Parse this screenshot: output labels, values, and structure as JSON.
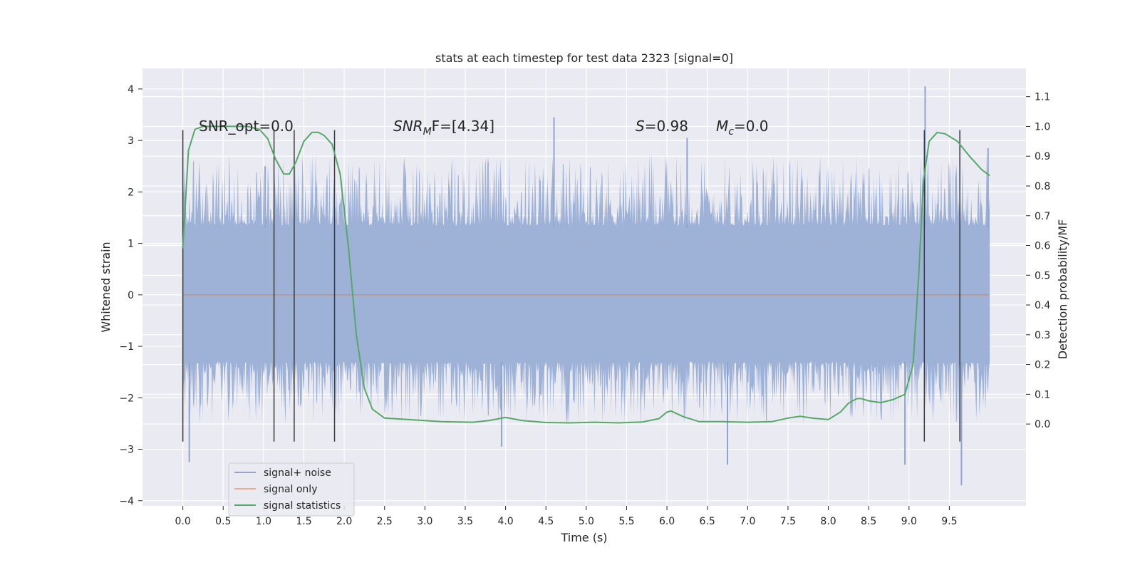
{
  "chart_data": {
    "type": "line",
    "title": "stats at each timestep for test data 2323 [signal=0]",
    "xlabel": "Time (s)",
    "ylabel": "Whitened strain",
    "y2label": "Detection probability/MF",
    "xlim": [
      -0.5,
      10.45
    ],
    "ylim": [
      -4.1,
      4.4
    ],
    "y2lim": [
      -0.275,
      1.195
    ],
    "x_ticks": [
      "0.0",
      "0.5",
      "1.0",
      "1.5",
      "2.0",
      "2.5",
      "3.0",
      "3.5",
      "4.0",
      "4.5",
      "5.0",
      "5.5",
      "6.0",
      "6.5",
      "7.0",
      "7.5",
      "8.0",
      "8.5",
      "9.0",
      "9.5"
    ],
    "y_ticks": [
      "4",
      "3",
      "2",
      "1",
      "0",
      "−1",
      "−2",
      "−3",
      "−4"
    ],
    "y2_ticks": [
      "1.1",
      "1.0",
      "0.9",
      "0.8",
      "0.7",
      "0.6",
      "0.5",
      "0.4",
      "0.3",
      "0.2",
      "0.1",
      "0.0"
    ],
    "grid": true,
    "background": "#eaeaf2",
    "legend_position": "lower-left",
    "colors": {
      "noise": "#8fa5cf",
      "signal": "#dd8452",
      "statistics": "#55a868",
      "markers": "#3a3a3a"
    },
    "annotations": {
      "snr_opt": "SNR_opt=0.0",
      "snr_mf_prefix": "SNR",
      "snr_mf_sub": "M",
      "snr_mf_suffix": "F=[4.34]",
      "s_var": "S",
      "s_val": "=0.98",
      "mc_var": "M",
      "mc_sub": "c",
      "mc_val": "=0.0"
    },
    "series": [
      {
        "name": "signal+ noise",
        "x_range": [
          0.0,
          10.0
        ],
        "envelope_typical": [
          -1.9,
          2.4
        ],
        "notable_peaks": [
          {
            "x": 1.02,
            "y": 2.5
          },
          {
            "x": 4.6,
            "y": 3.45
          },
          {
            "x": 6.25,
            "y": 3.05
          },
          {
            "x": 9.2,
            "y": 4.05
          },
          {
            "x": 9.98,
            "y": 2.85
          },
          {
            "x": 0.08,
            "y": -3.25
          },
          {
            "x": 9.65,
            "y": -3.7
          },
          {
            "x": 6.75,
            "y": -3.3
          },
          {
            "x": 8.95,
            "y": -3.3
          },
          {
            "x": 3.95,
            "y": -2.95
          }
        ]
      },
      {
        "name": "signal only",
        "x": [
          0.0,
          10.0
        ],
        "y": [
          0.0,
          0.0
        ]
      },
      {
        "name": "signal statistics",
        "x": [
          0.0,
          0.07,
          0.15,
          0.25,
          0.4,
          0.6,
          0.8,
          0.95,
          1.05,
          1.15,
          1.25,
          1.32,
          1.4,
          1.5,
          1.6,
          1.68,
          1.75,
          1.85,
          1.95,
          2.05,
          2.15,
          2.25,
          2.35,
          2.5,
          2.8,
          3.2,
          3.6,
          3.8,
          4.0,
          4.2,
          4.5,
          4.8,
          5.1,
          5.4,
          5.7,
          5.9,
          6.0,
          6.05,
          6.2,
          6.4,
          6.7,
          7.0,
          7.3,
          7.5,
          7.65,
          7.8,
          8.0,
          8.15,
          8.25,
          8.35,
          8.4,
          8.5,
          8.65,
          8.8,
          8.95,
          9.05,
          9.12,
          9.18,
          9.25,
          9.35,
          9.45,
          9.6,
          9.75,
          9.9,
          10.0
        ],
        "y": [
          0.59,
          0.92,
          0.99,
          1.0,
          1.0,
          1.0,
          1.0,
          0.99,
          0.96,
          0.89,
          0.84,
          0.84,
          0.88,
          0.95,
          0.98,
          0.98,
          0.97,
          0.94,
          0.84,
          0.6,
          0.3,
          0.12,
          0.05,
          0.02,
          0.015,
          0.008,
          0.006,
          0.012,
          0.022,
          0.012,
          0.005,
          0.004,
          0.006,
          0.004,
          0.007,
          0.018,
          0.04,
          0.044,
          0.025,
          0.008,
          0.008,
          0.006,
          0.008,
          0.02,
          0.026,
          0.02,
          0.015,
          0.04,
          0.07,
          0.085,
          0.086,
          0.078,
          0.072,
          0.082,
          0.1,
          0.2,
          0.5,
          0.82,
          0.95,
          0.98,
          0.975,
          0.95,
          0.9,
          0.855,
          0.835
        ]
      }
    ],
    "vertical_markers": [
      {
        "x": 0.0,
        "y_top": 3.2,
        "y_bottom": -2.85
      },
      {
        "x": 1.13,
        "y_top": 3.2,
        "y_bottom": -2.85
      },
      {
        "x": 1.38,
        "y_top": 3.2,
        "y_bottom": -2.85
      },
      {
        "x": 1.88,
        "y_top": 3.2,
        "y_bottom": -2.85
      },
      {
        "x": 9.19,
        "y_top": 3.2,
        "y_bottom": -2.85
      },
      {
        "x": 9.63,
        "y_top": 3.2,
        "y_bottom": -2.85
      }
    ]
  }
}
